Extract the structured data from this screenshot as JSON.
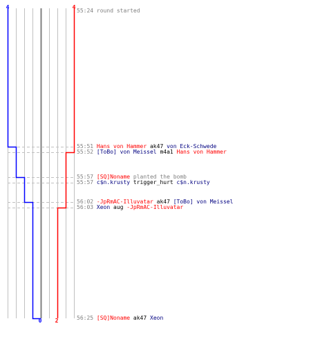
{
  "colors": {
    "team_a": "#0000ff",
    "team_b": "#ff0000",
    "team_a_text": "#000080",
    "team_b_text": "#ff0000",
    "grid": "#c0c0c0",
    "center_line": "#808080",
    "timestamp": "#808080",
    "neutral": "#000000"
  },
  "scoreboard": {
    "team_a_start": "4",
    "team_b_start": "4",
    "team_a_end": "0",
    "team_b_end": "2"
  },
  "chart_data": {
    "type": "line",
    "series": [
      {
        "values": [
          4,
          3,
          2,
          1,
          0
        ]
      },
      {
        "values": [
          4,
          3,
          2
        ]
      }
    ],
    "event_times": [
      "55:24",
      "55:51",
      "55:52",
      "55:57",
      "55:57",
      "56:02",
      "56:03",
      "56:25"
    ],
    "ylim": [
      0,
      4
    ]
  },
  "log": [
    {
      "time": "55:24",
      "parts": [
        {
          "text": "round started",
          "style": "gray"
        }
      ]
    },
    {
      "time": "55:51",
      "parts": [
        {
          "text": "Hans von Hammer",
          "style": "red"
        },
        {
          "text": " ak47 ",
          "style": "dark"
        },
        {
          "text": "von Eck-Schwede",
          "style": "blue"
        }
      ]
    },
    {
      "time": "55:52",
      "parts": [
        {
          "text": "[ToBo] von Meissel",
          "style": "blue"
        },
        {
          "text": " m4a1 ",
          "style": "dark"
        },
        {
          "text": "Hans von Hammer",
          "style": "red"
        }
      ]
    },
    {
      "time": "55:57",
      "parts": [
        {
          "text": "[SQ]Noname",
          "style": "red"
        },
        {
          "text": " planted the bomb",
          "style": "gray"
        }
      ]
    },
    {
      "time": "55:57",
      "parts": [
        {
          "text": "c$n.krusty",
          "style": "blue"
        },
        {
          "text": " trigger_hurt ",
          "style": "dark"
        },
        {
          "text": "c$n.krusty",
          "style": "blue"
        }
      ]
    },
    {
      "time": "56:02",
      "parts": [
        {
          "text": "-JpRmAC-Illuvatar",
          "style": "red"
        },
        {
          "text": " ak47 ",
          "style": "dark"
        },
        {
          "text": "[ToBo] von Meissel",
          "style": "blue"
        }
      ]
    },
    {
      "time": "56:03",
      "parts": [
        {
          "text": "Xeon",
          "style": "blue"
        },
        {
          "text": " aug ",
          "style": "dark"
        },
        {
          "text": "-JpRmAC-Illuvatar",
          "style": "red"
        }
      ]
    },
    {
      "time": "56:25",
      "parts": [
        {
          "text": "[SQ]Noname",
          "style": "red"
        },
        {
          "text": " ak47 ",
          "style": "dark"
        },
        {
          "text": "Xeon",
          "style": "blue"
        }
      ]
    }
  ]
}
